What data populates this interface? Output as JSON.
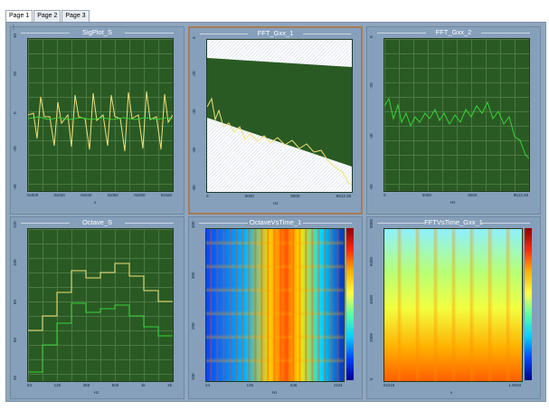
{
  "tabs": [
    "Page 1",
    "Page 2",
    "Page 3"
  ],
  "panels": [
    {
      "title": "SigPlot_S",
      "xticks": [
        "0x000",
        "0x020",
        "0x040",
        "0x060",
        "0x080",
        "0x0a0"
      ],
      "yticks": [
        "40",
        "20",
        "0",
        "-20",
        "-40"
      ],
      "xunit": "s"
    },
    {
      "title": "FFT_Gxx_1",
      "xticks": [
        "0",
        "5000",
        "8000",
        "8513.28"
      ],
      "yticks": [
        "0",
        "-20",
        "-40",
        "-60",
        "-80"
      ],
      "xunit": "Hz"
    },
    {
      "title": "FFT_Gxx_2",
      "xticks": [
        "0",
        "5000",
        "8000",
        "8513.28"
      ],
      "yticks": [
        "0",
        "-20",
        "-40",
        "-60"
      ],
      "xunit": "Hz"
    },
    {
      "title": "Octave_S",
      "xticks": [
        "63",
        "125",
        "250",
        "500",
        "1k",
        "2k"
      ],
      "yticks": [
        "120",
        "100",
        "80",
        "60",
        "40"
      ],
      "xunit": "Hz"
    },
    {
      "title": "OctaveVsTime_1",
      "xticks": [
        "24",
        "135",
        "546",
        "2181"
      ],
      "yticks": [
        "400",
        "300",
        "200",
        "100"
      ],
      "xunit": "Hz"
    },
    {
      "title": "FFTVsTime_Gxx_1",
      "xticks": [
        "0x216",
        "1.0e03"
      ],
      "yticks": [
        "8000",
        "6000",
        "4000",
        "2000",
        "0"
      ],
      "xunit": "s"
    }
  ],
  "colors": {
    "plot_bg": "#2a5a23",
    "trace_yellow": "#f2e07a",
    "trace_green": "#37d337"
  }
}
